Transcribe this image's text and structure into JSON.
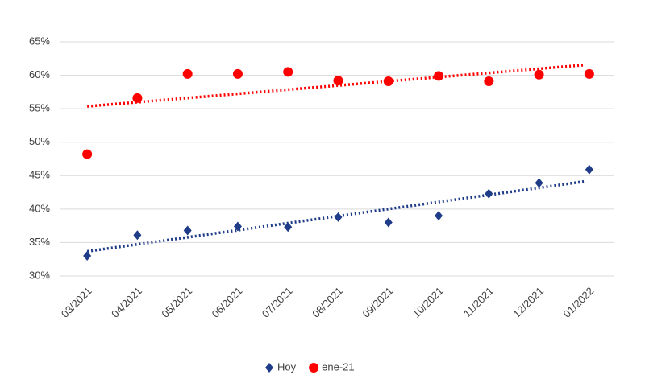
{
  "chart_data": {
    "type": "scatter",
    "categories": [
      "03/2021",
      "04/2021",
      "05/2021",
      "06/2021",
      "07/2021",
      "08/2021",
      "09/2021",
      "10/2021",
      "11/2021",
      "12/2021",
      "01/2022"
    ],
    "series": [
      {
        "name": "Hoy",
        "color": "#1f3c88",
        "marker": "diamond",
        "trendline": true,
        "values": [
          33.0,
          36.1,
          36.8,
          37.4,
          37.3,
          38.8,
          38.0,
          39.0,
          42.3,
          43.9,
          45.9
        ]
      },
      {
        "name": "ene-21",
        "color": "#ff0000",
        "marker": "circle",
        "trendline": true,
        "values": [
          48.2,
          56.6,
          60.2,
          60.2,
          60.5,
          59.2,
          59.1,
          59.9,
          59.1,
          60.1,
          60.2
        ]
      }
    ],
    "ylim": [
      30,
      65
    ],
    "yticks": [
      {
        "value": 30,
        "label": "30%"
      },
      {
        "value": 35,
        "label": "35%"
      },
      {
        "value": 40,
        "label": "40%"
      },
      {
        "value": 45,
        "label": "45%"
      },
      {
        "value": 50,
        "label": "50%"
      },
      {
        "value": 55,
        "label": "55%"
      },
      {
        "value": 60,
        "label": "60%"
      },
      {
        "value": 65,
        "label": "65%"
      }
    ],
    "grid": true,
    "legend": "bottom"
  }
}
